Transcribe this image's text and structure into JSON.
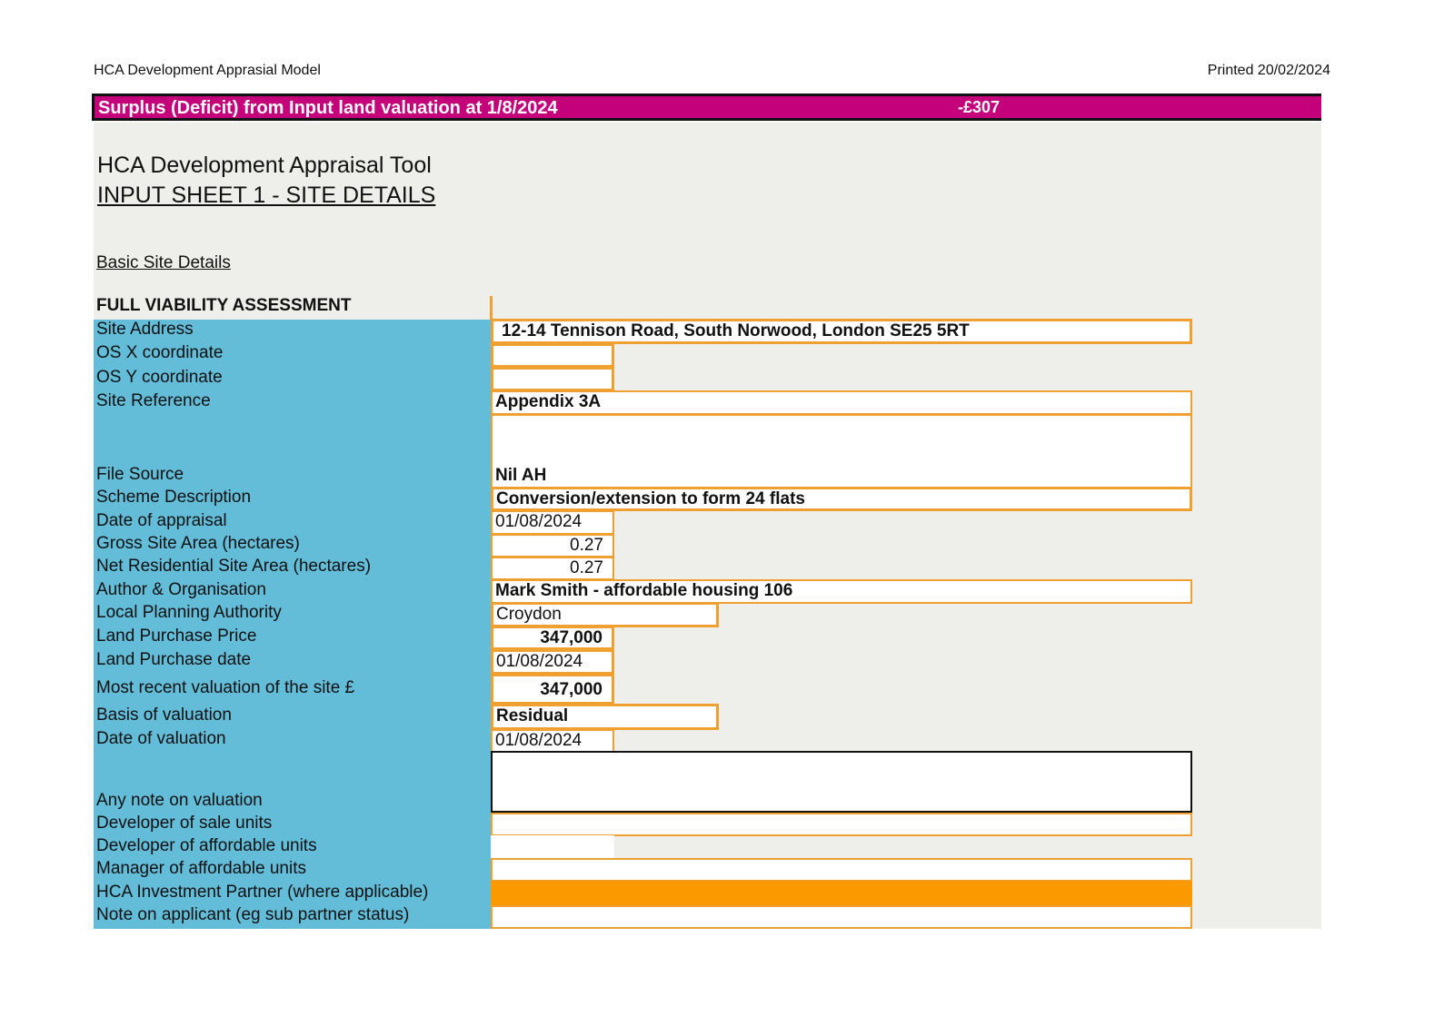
{
  "header": {
    "left": "HCA Development Apprasial Model",
    "right": "Printed 20/02/2024"
  },
  "surplus": {
    "label": "Surplus (Deficit) from Input land valuation at 1/8/2024",
    "value": "-£307"
  },
  "title": "HCA Development Appraisal Tool",
  "subtitle": "INPUT SHEET 1 - SITE DETAILS",
  "section": "Basic Site Details",
  "assessment": "FULL VIABILITY ASSESSMENT",
  "rows": [
    {
      "label": "Site Address",
      "value": "12-14 Tennison Road, South Norwood, London SE25 5RT"
    },
    {
      "label": "OS X coordinate",
      "value": ""
    },
    {
      "label": "OS Y coordinate",
      "value": ""
    },
    {
      "label": "Site Reference",
      "value": "Appendix 3A"
    },
    {
      "label": "File Source",
      "value": "Nil AH"
    },
    {
      "label": "Scheme Description",
      "value": "Conversion/extension to form 24 flats"
    },
    {
      "label": "Date of appraisal",
      "value": "01/08/2024"
    },
    {
      "label": "Gross Site Area (hectares)",
      "value": "0.27"
    },
    {
      "label": "Net Residential Site Area (hectares)",
      "value": "0.27"
    },
    {
      "label": "Author & Organisation",
      "value": "Mark Smith - affordable housing 106"
    },
    {
      "label": "Local Planning Authority",
      "value": "Croydon"
    },
    {
      "label": "Land Purchase Price",
      "value": "347,000"
    },
    {
      "label": "Land Purchase date",
      "value": "01/08/2024"
    },
    {
      "label": "Most recent valuation of the site £",
      "value": "347,000"
    },
    {
      "label": "Basis of valuation",
      "value": "Residual"
    },
    {
      "label": "Date of valuation",
      "value": "01/08/2024"
    },
    {
      "label": "Any note on valuation",
      "value": ""
    },
    {
      "label": "Developer of sale units",
      "value": ""
    },
    {
      "label": "Developer of affordable units",
      "value": ""
    },
    {
      "label": "Manager of affordable units",
      "value": ""
    },
    {
      "label": "HCA Investment Partner (where applicable)",
      "value": ""
    },
    {
      "label": "Note on applicant (eg sub partner status)",
      "value": ""
    }
  ],
  "colors": {
    "banner": "#c4007a",
    "label_column": "#63bcd8",
    "input_border": "#f0a030",
    "partner_fill": "#fb9a00",
    "sheet": "#eeeeea"
  }
}
